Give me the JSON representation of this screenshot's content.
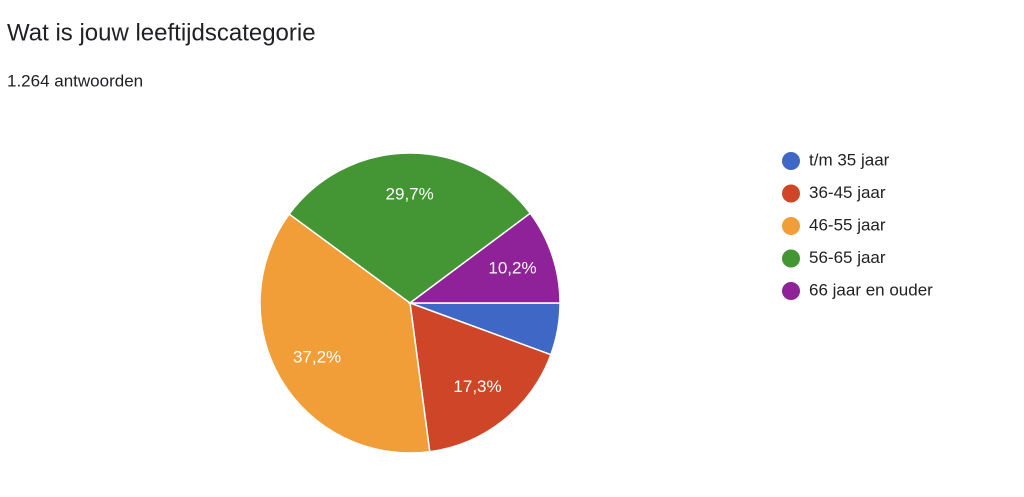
{
  "chart_data": {
    "type": "pie",
    "title": "Wat is jouw leeftijdscategorie",
    "subtitle": "1.264 antwoorden",
    "categories": [
      "t/m 35 jaar",
      "36-45 jaar",
      "46-55 jaar",
      "56-65 jaar",
      "66 jaar en ouder"
    ],
    "values": [
      5.6,
      17.3,
      37.2,
      29.7,
      10.2
    ],
    "value_labels": [
      null,
      "17,3%",
      "37,2%",
      "29,7%",
      "10,2%"
    ],
    "colors": [
      "#3f67c6",
      "#cf4527",
      "#f19d38",
      "#449634",
      "#8f2199"
    ],
    "legend": "right"
  }
}
